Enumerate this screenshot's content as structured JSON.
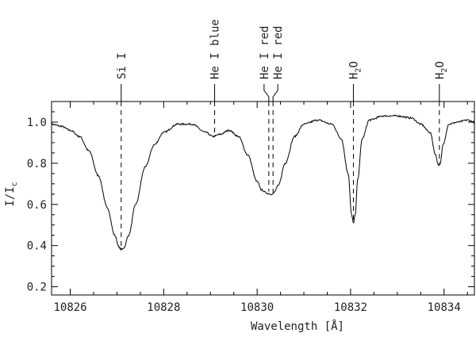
{
  "chart_data": {
    "type": "line",
    "xlabel": "Wavelength [Å]",
    "ylabel": "I/I",
    "ylabel_sub": "c",
    "xlim": [
      10825.6,
      10834.65
    ],
    "ylim": [
      0.16,
      1.1
    ],
    "x_ticks": [
      10826,
      10828,
      10830,
      10832,
      10834
    ],
    "y_ticks": [
      0.2,
      0.4,
      0.6,
      0.8,
      1.0
    ],
    "x_tick_labels": [
      "10826",
      "10828",
      "10830",
      "10832",
      "10834"
    ],
    "y_tick_labels": [
      "0.2",
      "0.4",
      "0.6",
      "0.8",
      "1.0"
    ],
    "grid": false,
    "colors": {
      "line": "#000000",
      "axis": "#000000",
      "text": "#222222"
    },
    "spectrum": {
      "x": [
        10825.6,
        10825.8,
        10826.0,
        10826.2,
        10826.4,
        10826.6,
        10826.8,
        10826.95,
        10827.05,
        10827.1,
        10827.15,
        10827.25,
        10827.4,
        10827.6,
        10827.8,
        10828.0,
        10828.3,
        10828.6,
        10828.9,
        10829.05,
        10829.2,
        10829.4,
        10829.6,
        10829.8,
        10830.0,
        10830.1,
        10830.2,
        10830.3,
        10830.35,
        10830.45,
        10830.6,
        10830.8,
        10831.0,
        10831.3,
        10831.6,
        10831.8,
        10831.95,
        10832.02,
        10832.06,
        10832.1,
        10832.15,
        10832.25,
        10832.4,
        10832.7,
        10833.0,
        10833.3,
        10833.5,
        10833.7,
        10833.82,
        10833.88,
        10833.92,
        10833.98,
        10834.1,
        10834.3,
        10834.5,
        10834.65
      ],
      "y": [
        0.99,
        0.98,
        0.96,
        0.93,
        0.86,
        0.74,
        0.58,
        0.45,
        0.39,
        0.38,
        0.39,
        0.45,
        0.6,
        0.78,
        0.89,
        0.95,
        0.99,
        0.99,
        0.95,
        0.93,
        0.94,
        0.96,
        0.93,
        0.84,
        0.71,
        0.67,
        0.655,
        0.65,
        0.655,
        0.69,
        0.8,
        0.93,
        0.99,
        1.01,
        0.99,
        0.92,
        0.75,
        0.55,
        0.51,
        0.55,
        0.72,
        0.92,
        1.01,
        1.03,
        1.03,
        1.02,
        0.99,
        0.95,
        0.84,
        0.79,
        0.8,
        0.89,
        0.99,
        1.0,
        1.01,
        1.0
      ]
    },
    "line_markers": [
      {
        "label": "Si I",
        "x": 10827.09,
        "curve_y": 0.38
      },
      {
        "label": "He I blue",
        "x": 10829.09,
        "curve_y": 0.93
      },
      {
        "label": "He I red",
        "x": 10830.25,
        "curve_y": 0.655
      },
      {
        "label": "He I red",
        "x": 10830.34,
        "curve_y": 0.65
      },
      {
        "label": "H2O",
        "label_main": "H",
        "label_sub": "2",
        "label_end": "O",
        "x": 10832.06,
        "curve_y": 0.51
      },
      {
        "label": "H2O",
        "label_main": "H",
        "label_sub": "2",
        "label_end": "O",
        "x": 10833.9,
        "curve_y": 0.79
      }
    ]
  }
}
